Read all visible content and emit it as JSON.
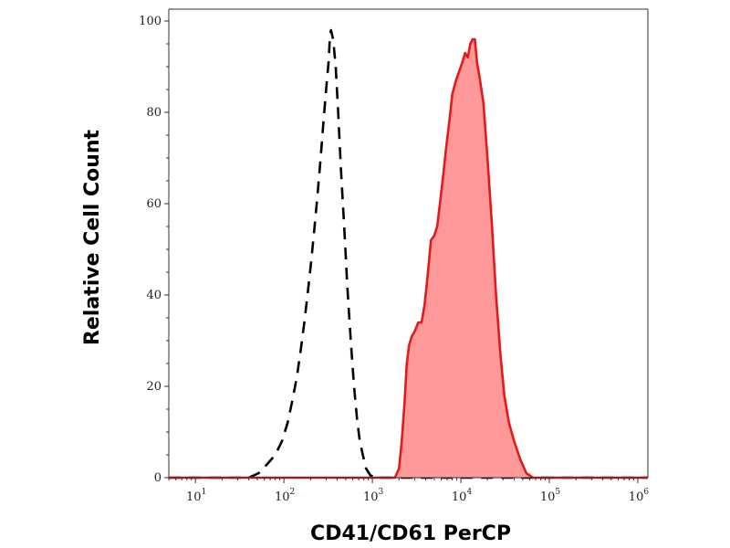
{
  "chart_data": {
    "type": "area",
    "xlabel": "CD41/CD61 PerCP",
    "ylabel": "Relative Cell Count",
    "xscale": "log",
    "xlim": [
      5,
      1300000
    ],
    "ylim": [
      0,
      100
    ],
    "grid": false,
    "legend": "none",
    "yticks": [
      "0",
      "20",
      "40",
      "60",
      "80",
      "100"
    ],
    "xticks": [
      {
        "base": "10",
        "exp": "1"
      },
      {
        "base": "10",
        "exp": "2"
      },
      {
        "base": "10",
        "exp": "3"
      },
      {
        "base": "10",
        "exp": "4"
      },
      {
        "base": "10",
        "exp": "5"
      },
      {
        "base": "10",
        "exp": "6"
      }
    ],
    "series": [
      {
        "style": "dashed-outline",
        "color": "#000000",
        "x": [
          5,
          40,
          52,
          65,
          80,
          95,
          110,
          125,
          140,
          155,
          170,
          185,
          200,
          220,
          240,
          260,
          280,
          300,
          320,
          330,
          340,
          360,
          385,
          410,
          440,
          480,
          520,
          570,
          620,
          670,
          720,
          780,
          850,
          950,
          1100,
          2000,
          1300000
        ],
        "y": [
          0,
          0,
          1,
          3,
          5,
          8,
          12,
          17,
          22,
          28,
          34,
          40,
          46,
          54,
          62,
          70,
          78,
          85,
          91,
          96,
          98,
          96,
          90,
          80,
          68,
          55,
          42,
          30,
          20,
          13,
          8,
          5,
          2,
          0.5,
          0,
          0,
          0
        ]
      },
      {
        "style": "filled",
        "color": "#e31a1c",
        "fill": "#ff9999",
        "x": [
          5,
          1800,
          2000,
          2150,
          2300,
          2450,
          2600,
          2800,
          3000,
          3300,
          3600,
          3900,
          4200,
          4600,
          5000,
          5400,
          5800,
          6300,
          6800,
          7400,
          8000,
          8800,
          9600,
          10400,
          11200,
          12000,
          12800,
          13600,
          14400,
          15200,
          16500,
          18000,
          20000,
          22500,
          25000,
          28000,
          31000,
          35000,
          40000,
          47000,
          55000,
          65000,
          80000,
          1300000
        ],
        "y": [
          0,
          0,
          2,
          8,
          16,
          25,
          29,
          31,
          32,
          34,
          34,
          38,
          44,
          52,
          53,
          55,
          60,
          66,
          72,
          78,
          84,
          87,
          89,
          91,
          93,
          92,
          95,
          96,
          96,
          91,
          87,
          82,
          70,
          55,
          40,
          27,
          18,
          12,
          8,
          4,
          1,
          0,
          0,
          0
        ]
      }
    ]
  }
}
